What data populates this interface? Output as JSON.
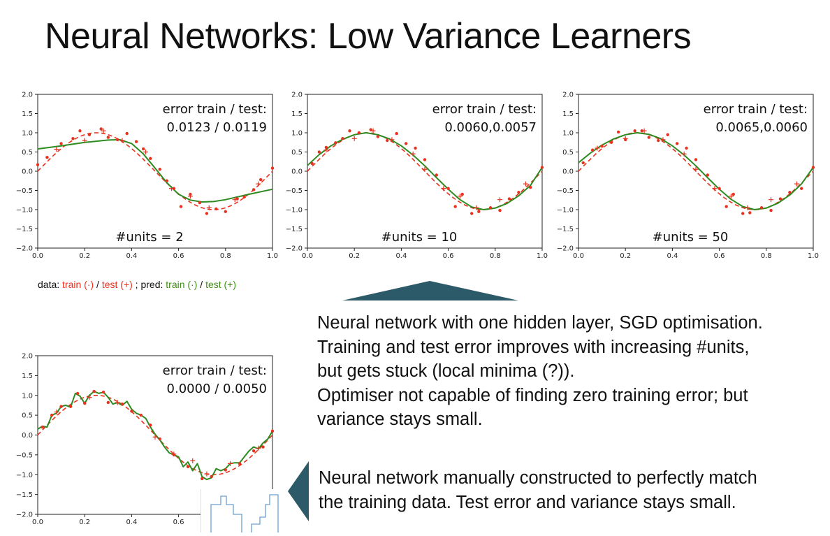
{
  "title": "Neural Networks: Low Variance Learners",
  "legend": {
    "data_prefix": "data: ",
    "data_train": "train (·)",
    "slash1": " / ",
    "data_test": "test (+)",
    "sep": " ; pred:  ",
    "pred_train": "train (·)",
    "slash2": " / ",
    "pred_test": "test (+)"
  },
  "description_lines": [
    "Neural network with one hidden layer, SGD optimisation.",
    "Training and test error improves with increasing #units,",
    "but gets stuck (local minima (?)).",
    "Optimiser not capable of finding zero training error; but",
    "variance stays small."
  ],
  "callout_lines": [
    "Neural network manually constructed to perfectly match",
    "the training data. Test error and variance stays small."
  ],
  "colors": {
    "true_curve": "#e8311e",
    "data_points": "#e8311e",
    "prediction": "#2e8b21",
    "callout_arrow": "#2d5a69",
    "inset_line": "#6aa0d0"
  },
  "chart_data": [
    {
      "type": "line",
      "annotation_line1": "error train / test:",
      "annotation_line2": "0.0123 / 0.0119",
      "label": "#units = 2",
      "xlim": [
        0.0,
        1.0
      ],
      "ylim": [
        -2.0,
        2.0
      ],
      "x_ticks": [
        "0.0",
        "0.2",
        "0.4",
        "0.6",
        "0.8",
        "1.0"
      ],
      "y_ticks": [
        "2.0",
        "1.5",
        "1.0",
        "0.5",
        "0.0",
        "−0.5",
        "−1.0",
        "−1.5",
        "−2.0"
      ],
      "x_tick_values": [
        0,
        0.2,
        0.4,
        0.6,
        0.8,
        1.0
      ],
      "y_tick_values": [
        2,
        1.5,
        1,
        0.5,
        0,
        -0.5,
        -1,
        -1.5,
        -2
      ],
      "prediction": {
        "x": [
          0.0,
          0.1,
          0.2,
          0.3,
          0.35,
          0.4,
          0.45,
          0.5,
          0.55,
          0.6,
          0.65,
          0.7,
          0.75,
          0.8,
          0.9,
          1.0
        ],
        "y": [
          0.58,
          0.66,
          0.75,
          0.81,
          0.82,
          0.72,
          0.45,
          0.08,
          -0.3,
          -0.6,
          -0.75,
          -0.8,
          -0.79,
          -0.74,
          -0.6,
          -0.47
        ]
      },
      "train_points": {
        "x": [
          0.0,
          0.04,
          0.1,
          0.15,
          0.18,
          0.22,
          0.27,
          0.3,
          0.34,
          0.38,
          0.42,
          0.45,
          0.48,
          0.52,
          0.55,
          0.58,
          0.61,
          0.65,
          0.69,
          0.72,
          0.76,
          0.8,
          0.85,
          0.88,
          0.92,
          0.95,
          1.0
        ],
        "y": [
          0.17,
          0.36,
          0.72,
          0.85,
          1.05,
          0.95,
          1.1,
          0.88,
          0.82,
          0.98,
          0.77,
          0.58,
          0.33,
          0.05,
          -0.25,
          -0.45,
          -0.92,
          -0.6,
          -0.82,
          -1.1,
          -0.98,
          -1.05,
          -0.72,
          -0.67,
          -0.48,
          -0.22,
          0.08
        ]
      },
      "test_points": {
        "x": [
          0.08,
          0.2,
          0.28,
          0.36,
          0.46,
          0.57,
          0.65,
          0.73,
          0.84,
          0.94
        ],
        "y": [
          0.57,
          0.8,
          1.05,
          0.8,
          0.5,
          -0.45,
          -0.65,
          -0.95,
          -0.74,
          -0.33
        ]
      }
    },
    {
      "type": "line",
      "annotation_line1": "error train / test:",
      "annotation_line2": "0.0060,0.0057",
      "label": "#units = 10",
      "xlim": [
        0.0,
        1.0
      ],
      "ylim": [
        -2.0,
        2.0
      ],
      "x_ticks": [
        "0.0",
        "0.2",
        "0.4",
        "0.6",
        "0.8",
        "1.0"
      ],
      "y_ticks": [
        "2.0",
        "1.5",
        "1.0",
        "0.5",
        "0.0",
        "−0.5",
        "−1.0",
        "−1.5",
        "−2.0"
      ],
      "x_tick_values": [
        0,
        0.2,
        0.4,
        0.6,
        0.8,
        1.0
      ],
      "y_tick_values": [
        2,
        1.5,
        1,
        0.5,
        0,
        -0.5,
        -1,
        -1.5,
        -2
      ],
      "prediction": {
        "x": [
          0.0,
          0.05,
          0.1,
          0.15,
          0.2,
          0.25,
          0.3,
          0.35,
          0.4,
          0.45,
          0.5,
          0.55,
          0.6,
          0.65,
          0.7,
          0.75,
          0.8,
          0.85,
          0.9,
          0.95,
          1.0
        ],
        "y": [
          0.15,
          0.43,
          0.66,
          0.83,
          0.95,
          1.0,
          0.95,
          0.84,
          0.66,
          0.42,
          0.14,
          -0.17,
          -0.47,
          -0.74,
          -0.93,
          -1.0,
          -0.96,
          -0.84,
          -0.64,
          -0.37,
          0.1
        ]
      },
      "train_points": {
        "x": [
          0.02,
          0.05,
          0.08,
          0.12,
          0.15,
          0.18,
          0.22,
          0.27,
          0.3,
          0.34,
          0.38,
          0.42,
          0.46,
          0.5,
          0.55,
          0.6,
          0.63,
          0.66,
          0.7,
          0.73,
          0.78,
          0.82,
          0.86,
          0.9,
          0.95,
          1.0
        ],
        "y": [
          0.2,
          0.5,
          0.62,
          0.74,
          0.85,
          1.05,
          1.0,
          1.08,
          0.9,
          0.8,
          0.98,
          0.72,
          0.6,
          0.3,
          -0.1,
          -0.45,
          -0.92,
          -0.6,
          -1.1,
          -1.05,
          -0.95,
          -1.02,
          -0.72,
          -0.55,
          -0.42,
          0.1
        ]
      },
      "test_points": {
        "x": [
          0.08,
          0.2,
          0.28,
          0.36,
          0.45,
          0.5,
          0.58,
          0.65,
          0.72,
          0.82,
          0.93
        ],
        "y": [
          0.55,
          0.85,
          1.05,
          0.82,
          0.45,
          0.05,
          -0.45,
          -0.65,
          -0.95,
          -0.74,
          -0.33
        ]
      }
    },
    {
      "type": "line",
      "annotation_line1": "error train / test:",
      "annotation_line2": "0.0065,0.0060",
      "label": "#units = 50",
      "xlim": [
        0.0,
        1.0
      ],
      "ylim": [
        -2.0,
        2.0
      ],
      "x_ticks": [
        "0.0",
        "0.2",
        "0.4",
        "0.6",
        "0.8",
        "1.0"
      ],
      "y_ticks": [
        "2.0",
        "1.5",
        "1.0",
        "0.5",
        "0.0",
        "−0.5",
        "−1.0",
        "−1.5",
        "−2.0"
      ],
      "x_tick_values": [
        0,
        0.2,
        0.4,
        0.6,
        0.8,
        1.0
      ],
      "y_tick_values": [
        2,
        1.5,
        1,
        0.5,
        0,
        -0.5,
        -1,
        -1.5,
        -2
      ],
      "prediction": {
        "x": [
          0.0,
          0.05,
          0.1,
          0.15,
          0.2,
          0.25,
          0.3,
          0.35,
          0.4,
          0.45,
          0.5,
          0.55,
          0.6,
          0.65,
          0.7,
          0.75,
          0.8,
          0.85,
          0.9,
          0.95,
          1.0
        ],
        "y": [
          0.22,
          0.47,
          0.68,
          0.84,
          0.95,
          1.0,
          0.96,
          0.85,
          0.66,
          0.42,
          0.14,
          -0.17,
          -0.47,
          -0.73,
          -0.92,
          -1.0,
          -0.96,
          -0.83,
          -0.62,
          -0.33,
          0.1
        ]
      },
      "train_points": {
        "x": [
          0.02,
          0.06,
          0.1,
          0.14,
          0.17,
          0.2,
          0.24,
          0.27,
          0.3,
          0.34,
          0.38,
          0.42,
          0.46,
          0.5,
          0.55,
          0.6,
          0.63,
          0.66,
          0.7,
          0.73,
          0.78,
          0.82,
          0.86,
          0.9,
          0.95,
          1.0
        ],
        "y": [
          0.22,
          0.55,
          0.65,
          0.75,
          1.02,
          0.82,
          1.05,
          1.05,
          0.88,
          0.8,
          0.95,
          0.72,
          0.6,
          0.3,
          -0.1,
          -0.45,
          -0.92,
          -0.6,
          -1.1,
          -1.08,
          -0.95,
          -1.02,
          -0.72,
          -0.55,
          -0.45,
          0.1
        ]
      },
      "test_points": {
        "x": [
          0.08,
          0.2,
          0.28,
          0.36,
          0.45,
          0.5,
          0.58,
          0.65,
          0.72,
          0.82,
          0.93
        ],
        "y": [
          0.6,
          0.85,
          1.05,
          0.82,
          0.45,
          0.05,
          -0.45,
          -0.65,
          -0.95,
          -0.74,
          -0.33
        ]
      }
    },
    {
      "type": "line",
      "annotation_line1": "error train / test:",
      "annotation_line2": "0.0000 / 0.0050",
      "label": "",
      "xlim": [
        0.0,
        1.0
      ],
      "ylim": [
        -2.0,
        2.0
      ],
      "x_ticks": [
        "0.0",
        "0.2",
        "0.4",
        "0.6"
      ],
      "y_ticks": [
        "2.0",
        "1.5",
        "1.0",
        "0.5",
        "0.0",
        "−0.5",
        "−1.0",
        "−1.5",
        "−2.0"
      ],
      "x_tick_values": [
        0,
        0.2,
        0.4,
        0.6
      ],
      "y_tick_values": [
        2,
        1.5,
        1,
        0.5,
        0,
        -0.5,
        -1,
        -1.5,
        -2
      ],
      "prediction": {
        "x": [
          0.0,
          0.02,
          0.04,
          0.06,
          0.08,
          0.1,
          0.12,
          0.14,
          0.16,
          0.18,
          0.2,
          0.22,
          0.24,
          0.26,
          0.28,
          0.3,
          0.32,
          0.34,
          0.36,
          0.38,
          0.4,
          0.42,
          0.44,
          0.46,
          0.48,
          0.5,
          0.52,
          0.54,
          0.56,
          0.58,
          0.6,
          0.62,
          0.64,
          0.66,
          0.68,
          0.7,
          0.72,
          0.74,
          0.76,
          0.78,
          0.8,
          0.82,
          0.84,
          0.86,
          0.88,
          0.9,
          0.92,
          0.94,
          0.96,
          0.98,
          1.0
        ],
        "y": [
          0.15,
          0.22,
          0.2,
          0.5,
          0.55,
          0.72,
          0.75,
          0.7,
          1.05,
          0.98,
          0.8,
          1.0,
          1.1,
          1.05,
          1.08,
          0.95,
          0.78,
          0.82,
          0.75,
          0.85,
          0.65,
          0.55,
          0.5,
          0.42,
          0.2,
          0.02,
          -0.12,
          -0.3,
          -0.45,
          -0.5,
          -0.55,
          -0.8,
          -0.68,
          -0.9,
          -0.72,
          -1.05,
          -1.12,
          -1.08,
          -0.85,
          -0.9,
          -0.85,
          -0.72,
          -0.7,
          -0.7,
          -0.55,
          -0.4,
          -0.3,
          -0.35,
          -0.2,
          -0.1,
          0.1
        ]
      },
      "train_points": {
        "x": [
          0.02,
          0.06,
          0.1,
          0.14,
          0.17,
          0.2,
          0.24,
          0.28,
          0.3,
          0.36,
          0.4,
          0.44,
          0.48,
          0.52,
          0.58,
          0.64,
          0.7,
          0.74,
          0.8,
          0.86,
          0.92,
          0.96,
          1.0
        ],
        "y": [
          0.2,
          0.5,
          0.72,
          0.72,
          1.05,
          0.8,
          1.1,
          1.08,
          0.82,
          0.78,
          0.6,
          0.5,
          0.25,
          -0.1,
          -0.5,
          -0.8,
          -1.1,
          -1.05,
          -0.88,
          -0.72,
          -0.4,
          -0.3,
          0.1
        ]
      },
      "test_points": {
        "x": [
          0.08,
          0.22,
          0.34,
          0.5,
          0.58,
          0.66,
          0.72,
          0.82,
          0.94
        ],
        "y": [
          0.58,
          0.95,
          0.82,
          -0.05,
          -0.48,
          -0.65,
          -0.98,
          -0.72,
          -0.33
        ]
      }
    }
  ]
}
